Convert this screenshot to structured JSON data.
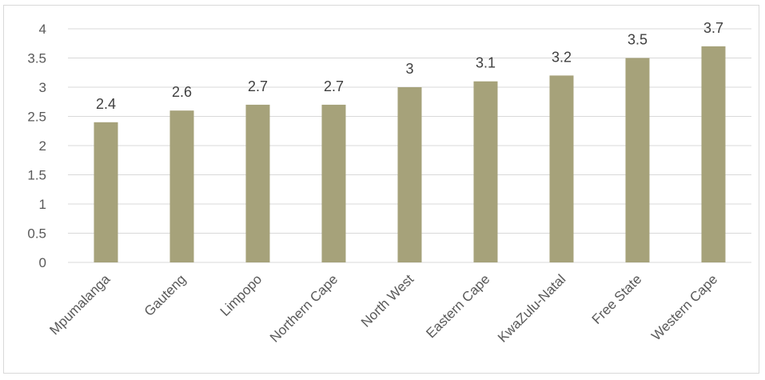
{
  "chart_data": {
    "type": "bar",
    "categories": [
      "Mpumalanga",
      "Gauteng",
      "Limpopo",
      "Northern Cape",
      "North West",
      "Eastern Cape",
      "KwaZulu-Natal",
      "Free State",
      "Western Cape"
    ],
    "values": [
      2.4,
      2.6,
      2.7,
      2.7,
      3,
      3.1,
      3.2,
      3.5,
      3.7
    ],
    "value_labels": [
      "2.4",
      "2.6",
      "2.7",
      "2.7",
      "3",
      "3.1",
      "3.2",
      "3.5",
      "3.7"
    ],
    "y_ticks": [
      "0",
      "0.5",
      "1",
      "1.5",
      "2",
      "2.5",
      "3",
      "3.5",
      "4"
    ],
    "ylim": [
      0,
      4
    ],
    "grid": true,
    "legend": "none",
    "bar_color": "#a6a27a",
    "grid_color": "#d9d9d9"
  }
}
